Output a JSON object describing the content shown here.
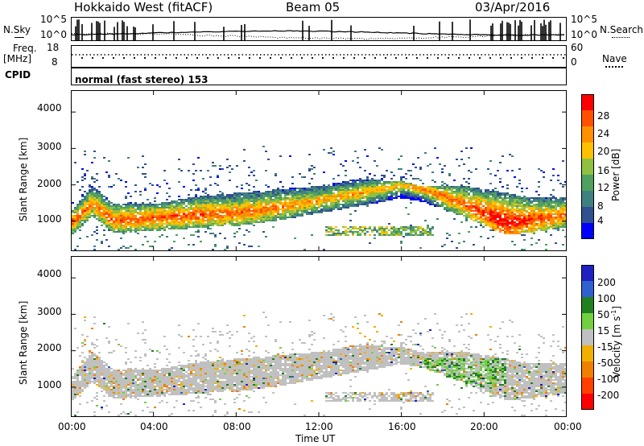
{
  "header": {
    "title": "Hokkaido West (fitACF)",
    "beam": "Beam 05",
    "date": "03/Apr/2016"
  },
  "nsky": {
    "label": "N.Sky",
    "ticks": [
      "10^5",
      "10^0"
    ],
    "right_label": "N.Search",
    "right_ticks": [
      "10^5",
      "10^0"
    ]
  },
  "freq": {
    "label_line1": "Freq.",
    "label_line2": "[MHz]",
    "ticks": [
      "18",
      "8"
    ],
    "right_label": "Nave",
    "right_ticks": [
      "60",
      "0"
    ]
  },
  "cpid": {
    "label": "CPID",
    "mode": "normal (fast stereo) 153"
  },
  "power_panel": {
    "ylabel": "Slant Range [km]",
    "yticks": [
      "4000",
      "3000",
      "2000",
      "1000"
    ],
    "colorbar_label": "Power [dB]",
    "colorbar_ticks": [
      "28",
      "24",
      "20",
      "16",
      "12",
      "8",
      "4"
    ],
    "colors": [
      "#ff0000",
      "#ff5000",
      "#ff9000",
      "#ffc000",
      "#90c040",
      "#50a060",
      "#408080",
      "#305090",
      "#0000ff"
    ]
  },
  "velocity_panel": {
    "ylabel": "Slant Range [km]",
    "yticks": [
      "4000",
      "3000",
      "2000",
      "1000"
    ],
    "colorbar_label": "Velocity [m s",
    "colorbar_label_sup": "-1",
    "colorbar_label_end": "]",
    "colorbar_ticks": [
      "200",
      "100",
      "50",
      "15",
      "-15",
      "-50",
      "-100",
      "-200"
    ],
    "colors": [
      "#2020c0",
      "#3060d0",
      "#208020",
      "#70d040",
      "#c0c0c0",
      "#f0b000",
      "#f08000",
      "#ff4000",
      "#ff0000"
    ]
  },
  "xaxis": {
    "ticks": [
      "00:00",
      "04:00",
      "08:00",
      "12:00",
      "16:00",
      "20:00",
      "00:00"
    ],
    "label": "Time UT"
  },
  "chart_data": [
    {
      "type": "heatmap",
      "title": "Hokkaido West (fitACF)",
      "xlabel": "Time UT",
      "ylabel": "Slant Range [km]",
      "xlim": [
        "00:00",
        "24:00"
      ],
      "ylim": [
        180,
        4600
      ],
      "colorbar": {
        "label": "Power [dB]",
        "range": [
          0,
          30
        ],
        "ticks": [
          28,
          24,
          20,
          16,
          12,
          8,
          4
        ]
      },
      "main_band_km": {
        "hours": [
          0,
          1,
          2,
          4,
          6,
          8,
          10,
          12,
          14,
          16,
          17,
          19,
          21,
          22,
          24
        ],
        "center": [
          1000,
          1500,
          1050,
          1100,
          1200,
          1250,
          1400,
          1600,
          1800,
          2000,
          1900,
          1500,
          1000,
          1050,
          1200
        ],
        "upper_edge": [
          1300,
          2000,
          1500,
          1500,
          1700,
          1800,
          1900,
          2000,
          2200,
          2100,
          2000,
          2000,
          1800,
          1700,
          1700
        ],
        "peak_power_db": [
          26,
          24,
          26,
          26,
          26,
          25,
          24,
          22,
          22,
          22,
          24,
          26,
          30,
          28,
          24
        ]
      }
    },
    {
      "type": "heatmap",
      "xlabel": "Time UT",
      "ylabel": "Slant Range [km]",
      "xlim": [
        "00:00",
        "24:00"
      ],
      "ylim": [
        180,
        4600
      ],
      "colorbar": {
        "label": "Velocity [m s-1]",
        "range": [
          -250,
          250
        ],
        "ticks": [
          200,
          100,
          50,
          15,
          -15,
          -50,
          -100,
          -200
        ]
      },
      "dominant_velocity_m_s": 0
    }
  ]
}
